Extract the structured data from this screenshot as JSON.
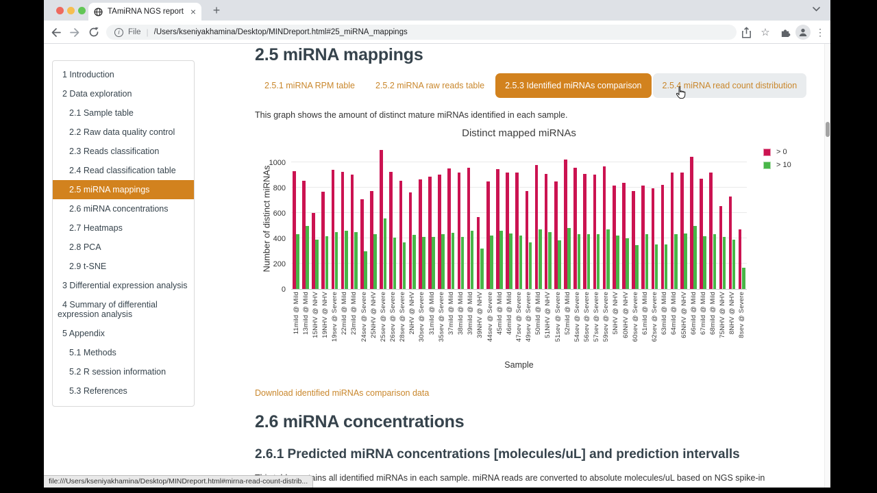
{
  "colors": {
    "accent_orange": "#D2821E",
    "link_orange": "#C9872C",
    "bar_red": "#CB1351",
    "bar_green": "#48B648",
    "heading": "#36434C"
  },
  "browser": {
    "tab_title": "TAmiRNA NGS report",
    "close_glyph": "×",
    "new_tab_glyph": "+",
    "url_scheme_label": "File",
    "url_separator": "|",
    "url_path": "/Users/kseniyakhamina/Desktop/MINDreport.html#25_miRNA_mappings",
    "info_glyph": "i",
    "star_glyph": "☆",
    "dots_glyph": "⋮",
    "status_link": "file:///Users/kseniyakhamina/Desktop/MINDreport.html#mirna-read-count-distrib..."
  },
  "sidebar": {
    "items": [
      {
        "label": "1 Introduction",
        "level": 1,
        "active": false
      },
      {
        "label": "2 Data exploration",
        "level": 1,
        "active": false
      },
      {
        "label": "2.1 Sample table",
        "level": 2,
        "active": false
      },
      {
        "label": "2.2 Raw data quality control",
        "level": 2,
        "active": false
      },
      {
        "label": "2.3 Reads classification",
        "level": 2,
        "active": false
      },
      {
        "label": "2.4 Read classification table",
        "level": 2,
        "active": false
      },
      {
        "label": "2.5 miRNA mappings",
        "level": 2,
        "active": true
      },
      {
        "label": "2.6 miRNA concentrations",
        "level": 2,
        "active": false
      },
      {
        "label": "2.7 Heatmaps",
        "level": 2,
        "active": false
      },
      {
        "label": "2.8 PCA",
        "level": 2,
        "active": false
      },
      {
        "label": "2.9 t-SNE",
        "level": 2,
        "active": false
      },
      {
        "label": "3 Differential expression analysis",
        "level": 1,
        "active": false
      },
      {
        "label": "4 Summary of differential expression analysis",
        "level": 1,
        "active": false
      },
      {
        "label": "5 Appendix",
        "level": 1,
        "active": false
      },
      {
        "label": "5.1 Methods",
        "level": 2,
        "active": false
      },
      {
        "label": "5.2 R session information",
        "level": 2,
        "active": false
      },
      {
        "label": "5.3 References",
        "level": 2,
        "active": false
      }
    ]
  },
  "main": {
    "section_title": "2.5 miRNA mappings",
    "tabs": [
      {
        "label": "2.5.1 miRNA RPM table",
        "state": "normal"
      },
      {
        "label": "2.5.2 miRNA raw reads table",
        "state": "normal"
      },
      {
        "label": "2.5.3 Identified miRNAs comparison",
        "state": "active"
      },
      {
        "label": "2.5.4 miRNA read count distribution",
        "state": "hover"
      }
    ],
    "description": "This graph shows the amount of distinct mature miRNAs identified in each sample.",
    "download_link": "Download identified miRNAs comparison data",
    "next_section_title": "2.6 miRNA concentrations",
    "subsection_title": "2.6.1 Predicted miRNA concentrations [molecules/uL] and prediction intervalls",
    "subsection_text": "This table contains all identified miRNAs in each sample. miRNA reads are converted to absolute molecules/uL based on NGS spike-in calibrators."
  },
  "chart_data": {
    "type": "bar",
    "title": "Distinct mapped miRNAs",
    "xlabel": "Sample",
    "ylabel": "Number of distinct miRNAs",
    "ylim": [
      0,
      1124
    ],
    "yticks": [
      0,
      200,
      400,
      600,
      800,
      1000
    ],
    "grid": true,
    "legend_position": "right",
    "categories": [
      "11mild @ Mild",
      "13mild @ Mild",
      "15NHV @ NHV",
      "19NHV @ NHV",
      "19sev @ Severe",
      "22mild @ Mild",
      "23mild @ Mild",
      "24sev @ Severe",
      "25NHV @ NHV",
      "25sev @ Severe",
      "26sev @ Severe",
      "28sev @ Severe",
      "2NHV @ NHV",
      "30sev @ Severe",
      "31mild @ Mild",
      "35sev @ Severe",
      "37mild @ Mild",
      "38mild @ Mild",
      "39mild @ Mild",
      "39NHV @ NHV",
      "44sev @ Severe",
      "45mild @ Mild",
      "46mild @ Mild",
      "47sev @ Severe",
      "49sev @ Severe",
      "50mild @ Mild",
      "51NHV @ NHV",
      "51sev @ Severe",
      "52mild @ Mild",
      "54sev @ Severe",
      "56sev @ Severe",
      "57sev @ Severe",
      "59sev @ Severe",
      "5NHV @ NHV",
      "60NHV @ NHV",
      "60sev @ Severe",
      "61mild @ Mild",
      "62sev @ Severe",
      "63mild @ Mild",
      "64mild @ Mild",
      "65NHV @ NHV",
      "66mild @ Mild",
      "67mild @ Mild",
      "68mild @ Mild",
      "75NHV @ NHV",
      "8NHV @ NHV",
      "8sev @ Severe"
    ],
    "series": [
      {
        "name": "> 0",
        "color": "#CB1351",
        "values": [
          930,
          855,
          600,
          770,
          940,
          925,
          905,
          710,
          775,
          1095,
          925,
          855,
          760,
          865,
          885,
          905,
          950,
          920,
          955,
          570,
          850,
          945,
          920,
          920,
          775,
          980,
          910,
          850,
          1020,
          955,
          910,
          900,
          965,
          815,
          840,
          775,
          815,
          795,
          820,
          920,
          920,
          1045,
          870,
          920,
          655,
          730,
          470
        ]
      },
      {
        "name": "> 10",
        "color": "#48B648",
        "values": [
          435,
          495,
          390,
          415,
          450,
          460,
          450,
          295,
          430,
          555,
          405,
          370,
          425,
          410,
          410,
          430,
          445,
          410,
          460,
          320,
          420,
          460,
          440,
          420,
          365,
          470,
          450,
          385,
          480,
          430,
          430,
          435,
          470,
          420,
          400,
          345,
          435,
          350,
          350,
          430,
          440,
          495,
          415,
          435,
          410,
          390,
          170
        ]
      }
    ]
  }
}
